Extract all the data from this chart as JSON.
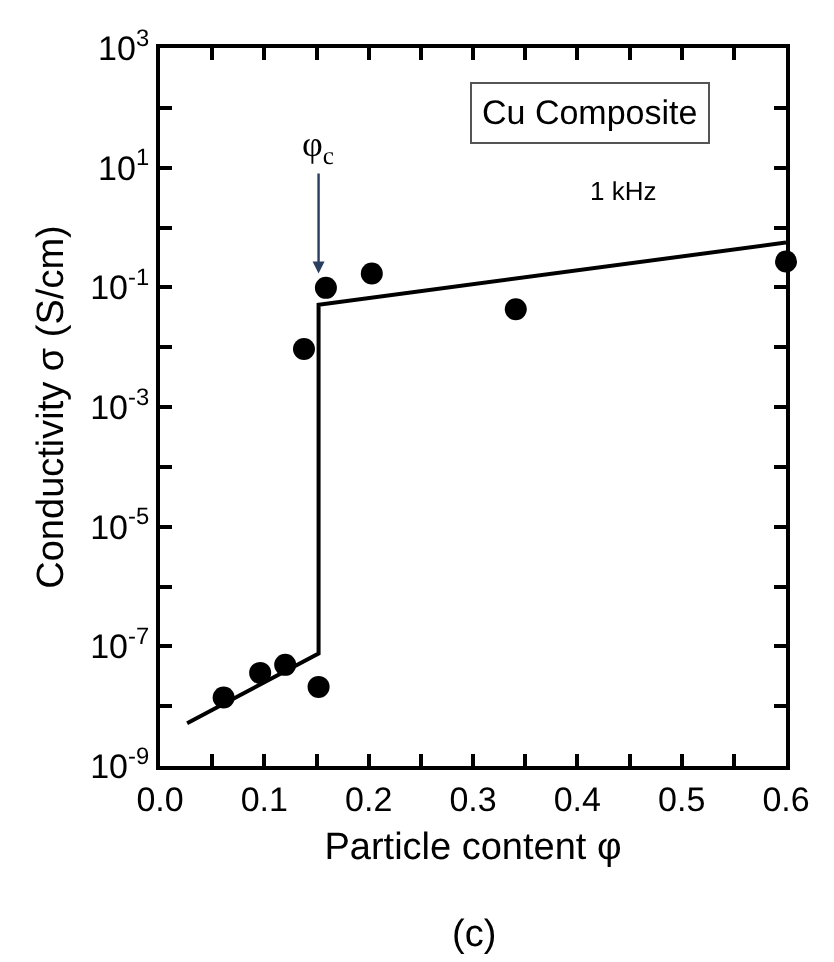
{
  "chart_data": {
    "type": "scatter",
    "xlabel": "Particle content φ",
    "ylabel": "Conductivity σ (S/cm)",
    "series": [
      {
        "marker": "circle",
        "color": "#000000",
        "x": [
          0.061,
          0.096,
          0.12,
          0.152,
          0.138,
          0.159,
          0.203,
          0.341,
          0.6
        ],
        "values": [
          1.4e-08,
          3.6e-08,
          4.9e-08,
          2.1e-08,
          0.0093,
          0.098,
          0.17,
          0.043,
          0.27
        ]
      },
      {
        "type": "line",
        "color": "#000000",
        "marker": "none",
        "line_style": "solid",
        "x": [
          0.026,
          0.152,
          0.152,
          0.6
        ],
        "values": [
          5.2e-09,
          7.6e-08,
          0.051,
          0.56
        ]
      }
    ],
    "log": "y",
    "grid": false,
    "xlim": [
      0,
      0.6
    ],
    "xticks": [
      {
        "value": 0,
        "label": "0.0"
      },
      {
        "value": 0.05,
        "label": null
      },
      {
        "value": 0.1,
        "label": "0.1"
      },
      {
        "value": 0.15,
        "label": null
      },
      {
        "value": 0.2,
        "label": "0.2"
      },
      {
        "value": 0.25,
        "label": null
      },
      {
        "value": 0.3,
        "label": "0.3"
      },
      {
        "value": 0.35,
        "label": null
      },
      {
        "value": 0.4,
        "label": "0.4"
      },
      {
        "value": 0.45,
        "label": null
      },
      {
        "value": 0.5,
        "label": "0.5"
      },
      {
        "value": 0.55,
        "label": null
      },
      {
        "value": 0.6,
        "label": "0.6"
      }
    ],
    "ylim": [
      1e-09,
      1000
    ],
    "yticks": [
      {
        "value": 1e-09,
        "label": "10$^{-9}$"
      },
      {
        "value": 1e-08,
        "label": null
      },
      {
        "value": 1e-07,
        "label": "10$^{-7}$"
      },
      {
        "value": 1e-06,
        "label": null
      },
      {
        "value": 1e-05,
        "label": "10$^{-5}$"
      },
      {
        "value": 0.0001,
        "label": null
      },
      {
        "value": 0.001,
        "label": "10$^{-3}$"
      },
      {
        "value": 0.01,
        "label": null
      },
      {
        "value": 0.1,
        "label": "10$^{-1}$"
      },
      {
        "value": 1,
        "label": null
      },
      {
        "value": 10,
        "label": "10$^{1}$"
      },
      {
        "value": 100,
        "label": null
      },
      {
        "value": 1000,
        "label": "10$^{3}$"
      }
    ],
    "annotations": [
      "Cu Composite",
      "1 kHz",
      {
        "text": "φ$_{c}$",
        "x": 0.152,
        "y": 0.17
      },
      "(c)"
    ]
  }
}
